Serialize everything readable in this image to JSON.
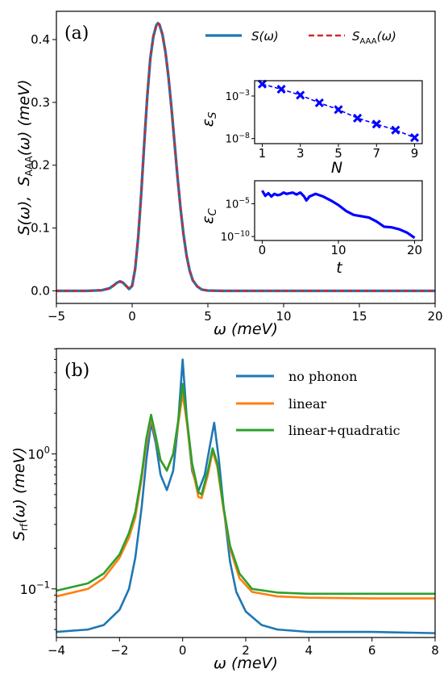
{
  "chart_data": [
    {
      "panel_label": "(a)",
      "type": "line",
      "xlabel": "ω (meV)",
      "ylabel": "S(ω), S_AAA(ω) (meV)",
      "xlim": [
        -5,
        20
      ],
      "ylim": [
        -0.02,
        0.445
      ],
      "xticks": [
        -5,
        0,
        5,
        10,
        15,
        20
      ],
      "xtick_labels": [
        "−5",
        "0",
        "5",
        "10",
        "15",
        "20"
      ],
      "yticks": [
        0.0,
        0.1,
        0.2,
        0.3,
        0.4
      ],
      "ytick_labels": [
        "0.0",
        "0.1",
        "0.2",
        "0.3",
        "0.4"
      ],
      "legend": {
        "placement": "top-right",
        "entries": [
          {
            "label": "S(ω)",
            "color": "#1f77b4",
            "style": "solid"
          },
          {
            "label": "S_AAA(ω)",
            "color": "#d62728",
            "style": "dashed"
          }
        ]
      },
      "series": [
        {
          "name": "S(ω)",
          "color": "#1f77b4",
          "x": [
            -5,
            -3,
            -2,
            -1.5,
            -1.2,
            -1.0,
            -0.8,
            -0.6,
            -0.4,
            -0.2,
            0,
            0.2,
            0.4,
            0.6,
            0.8,
            1.0,
            1.2,
            1.4,
            1.6,
            1.7,
            1.8,
            2.0,
            2.2,
            2.4,
            2.6,
            2.8,
            3.0,
            3.2,
            3.4,
            3.6,
            3.8,
            4.0,
            4.3,
            4.6,
            5.0,
            6,
            8,
            10,
            15,
            20
          ],
          "y": [
            0,
            0,
            0.001,
            0.004,
            0.009,
            0.013,
            0.015,
            0.013,
            0.008,
            0.003,
            0.008,
            0.035,
            0.085,
            0.155,
            0.235,
            0.31,
            0.37,
            0.405,
            0.423,
            0.426,
            0.424,
            0.408,
            0.38,
            0.34,
            0.29,
            0.235,
            0.18,
            0.13,
            0.088,
            0.055,
            0.032,
            0.017,
            0.007,
            0.002,
            0.0005,
            0,
            0,
            0,
            0,
            0
          ]
        },
        {
          "name": "S_AAA(ω)",
          "color": "#d62728",
          "x": [
            -5,
            -3,
            -2,
            -1.5,
            -1.2,
            -1.0,
            -0.8,
            -0.6,
            -0.4,
            -0.2,
            0,
            0.2,
            0.4,
            0.6,
            0.8,
            1.0,
            1.2,
            1.4,
            1.6,
            1.7,
            1.8,
            2.0,
            2.2,
            2.4,
            2.6,
            2.8,
            3.0,
            3.2,
            3.4,
            3.6,
            3.8,
            4.0,
            4.3,
            4.6,
            5.0,
            6,
            8,
            10,
            15,
            20
          ],
          "y": [
            0,
            0,
            0.001,
            0.004,
            0.009,
            0.013,
            0.015,
            0.013,
            0.008,
            0.003,
            0.008,
            0.035,
            0.085,
            0.155,
            0.235,
            0.31,
            0.37,
            0.405,
            0.423,
            0.426,
            0.424,
            0.408,
            0.38,
            0.34,
            0.29,
            0.235,
            0.18,
            0.13,
            0.088,
            0.055,
            0.032,
            0.017,
            0.007,
            0.002,
            0.0005,
            0,
            0,
            0,
            0,
            0
          ]
        }
      ]
    },
    {
      "inset": "upper",
      "type": "line",
      "scale_y": "log",
      "xlabel": "N",
      "ylabel": "ε_S",
      "xticks": [
        1,
        3,
        5,
        7,
        9
      ],
      "xtick_labels": [
        "1",
        "3",
        "5",
        "7",
        "9"
      ],
      "yticks_log": [
        -3,
        -8
      ],
      "ytick_labels": [
        "10",
        "10"
      ],
      "ytick_exponents": [
        "−3",
        "−8"
      ],
      "ylim_log": [
        -8.6,
        -1.2
      ],
      "xlim": [
        0.6,
        9.4
      ],
      "series": [
        {
          "name": "",
          "color": "#0000ff",
          "marker": "x",
          "style": "dashed",
          "x": [
            1,
            2,
            3,
            4,
            5,
            6,
            7,
            8,
            9
          ],
          "log10_y": [
            -1.6,
            -2.2,
            -2.9,
            -3.8,
            -4.6,
            -5.6,
            -6.3,
            -7.0,
            -7.9
          ]
        }
      ]
    },
    {
      "inset": "lower",
      "type": "line",
      "scale_y": "log",
      "xlabel": "t",
      "ylabel": "ε_C",
      "xticks": [
        0,
        10,
        20
      ],
      "xtick_labels": [
        "0",
        "10",
        "20"
      ],
      "yticks_log": [
        -5,
        -10
      ],
      "ytick_labels": [
        "10",
        "10"
      ],
      "ytick_exponents": [
        "−5",
        "−10"
      ],
      "xlim": [
        -1,
        21
      ],
      "ylim_log": [
        -10.6,
        -1.5
      ],
      "series": [
        {
          "name": "",
          "color": "#0000ff",
          "style": "solid",
          "x": [
            0,
            0.4,
            0.8,
            1.2,
            1.6,
            2.0,
            2.4,
            2.8,
            3.2,
            3.6,
            4.0,
            4.5,
            5.0,
            5.5,
            5.8,
            6.2,
            7.0,
            8.0,
            9.0,
            10.0,
            11.0,
            12.0,
            13.0,
            14.0,
            15.0,
            16.0,
            17.0,
            18.0,
            19.0,
            20.0
          ],
          "log10_y": [
            -3.0,
            -3.8,
            -3.4,
            -3.9,
            -3.5,
            -3.7,
            -3.6,
            -3.3,
            -3.5,
            -3.4,
            -3.3,
            -3.6,
            -3.3,
            -3.9,
            -4.5,
            -3.9,
            -3.5,
            -3.9,
            -4.5,
            -5.2,
            -6.1,
            -6.7,
            -6.9,
            -7.1,
            -7.7,
            -8.5,
            -8.6,
            -8.9,
            -9.4,
            -10.2
          ]
        }
      ]
    },
    {
      "panel_label": "(b)",
      "type": "line",
      "scale_y": "log",
      "xlabel": "ω (meV)",
      "ylabel": "S_rf(ω) (meV)",
      "xlim": [
        -4,
        8
      ],
      "xticks": [
        -4,
        -2,
        0,
        2,
        4,
        6,
        8
      ],
      "xtick_labels": [
        "−4",
        "−2",
        "0",
        "2",
        "4",
        "6",
        "8"
      ],
      "ylim_log": [
        -1.36,
        0.78
      ],
      "yticks_log": [
        -1,
        0
      ],
      "ytick_labels": [
        "10",
        "10"
      ],
      "ytick_exponents": [
        "−1",
        "0"
      ],
      "legend": {
        "placement": "top-right",
        "entries": [
          {
            "label": "no phonon",
            "color": "#1f77b4"
          },
          {
            "label": "linear",
            "color": "#ff7f0e"
          },
          {
            "label": "linear+quadratic",
            "color": "#2ca02c"
          }
        ]
      },
      "series": [
        {
          "name": "no phonon",
          "color": "#1f77b4",
          "x": [
            -4,
            -3,
            -2.5,
            -2,
            -1.7,
            -1.5,
            -1.3,
            -1.15,
            -1.0,
            -0.85,
            -0.7,
            -0.5,
            -0.3,
            -0.15,
            0,
            0.15,
            0.3,
            0.5,
            0.7,
            0.85,
            1.0,
            1.15,
            1.3,
            1.5,
            1.7,
            2.0,
            2.5,
            3,
            4,
            6,
            8
          ],
          "y": [
            0.048,
            0.05,
            0.054,
            0.07,
            0.1,
            0.17,
            0.4,
            0.9,
            1.7,
            1.2,
            0.7,
            0.54,
            0.75,
            1.6,
            5.0,
            1.6,
            0.75,
            0.53,
            0.7,
            1.1,
            1.7,
            0.9,
            0.4,
            0.16,
            0.095,
            0.068,
            0.054,
            0.05,
            0.048,
            0.048,
            0.047
          ]
        },
        {
          "name": "linear",
          "color": "#ff7f0e",
          "x": [
            -4,
            -3,
            -2.5,
            -2,
            -1.7,
            -1.5,
            -1.3,
            -1.15,
            -1.0,
            -0.85,
            -0.7,
            -0.5,
            -0.3,
            -0.15,
            0,
            0.15,
            0.3,
            0.5,
            0.6,
            0.8,
            0.95,
            1.1,
            1.3,
            1.5,
            1.8,
            2.2,
            3,
            4,
            6,
            8
          ],
          "y": [
            0.088,
            0.1,
            0.12,
            0.17,
            0.24,
            0.34,
            0.65,
            1.2,
            1.85,
            1.3,
            0.9,
            0.76,
            1.0,
            1.6,
            2.8,
            1.6,
            0.8,
            0.48,
            0.47,
            0.7,
            1.05,
            0.8,
            0.38,
            0.2,
            0.12,
            0.095,
            0.088,
            0.086,
            0.085,
            0.085
          ]
        },
        {
          "name": "linear+quadratic",
          "color": "#2ca02c",
          "x": [
            -4,
            -3,
            -2.5,
            -2,
            -1.7,
            -1.5,
            -1.3,
            -1.15,
            -1.0,
            -0.85,
            -0.7,
            -0.5,
            -0.3,
            -0.15,
            0,
            0.15,
            0.3,
            0.5,
            0.6,
            0.8,
            0.95,
            1.1,
            1.3,
            1.5,
            1.8,
            2.2,
            3,
            4,
            6,
            8
          ],
          "y": [
            0.097,
            0.11,
            0.13,
            0.18,
            0.26,
            0.37,
            0.7,
            1.3,
            1.95,
            1.35,
            0.9,
            0.75,
            1.0,
            1.7,
            3.3,
            1.7,
            0.85,
            0.52,
            0.5,
            0.75,
            1.1,
            0.85,
            0.4,
            0.21,
            0.13,
            0.1,
            0.094,
            0.092,
            0.092,
            0.092
          ]
        }
      ]
    }
  ]
}
